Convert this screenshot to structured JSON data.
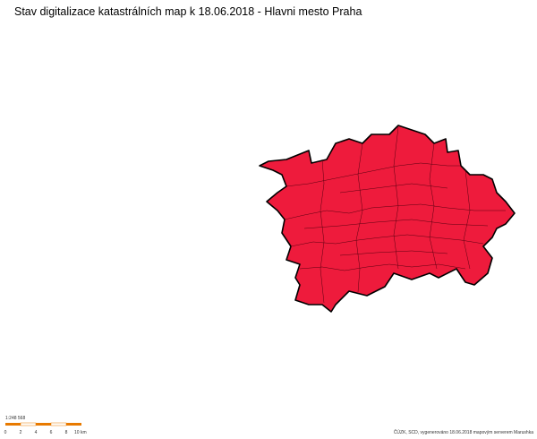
{
  "header": {
    "title": "Stav digitalizace katastrálních map k 18.06.2018 - Hlavni mesto Praha"
  },
  "scale": {
    "ratio": "1:248 568",
    "labels": [
      "0",
      "2",
      "4",
      "6",
      "8",
      "10 km"
    ]
  },
  "footer": {
    "credit": "ČÚZK, SCD, vygenerováno 18.06.2018 mapovým serverem Marushka"
  }
}
